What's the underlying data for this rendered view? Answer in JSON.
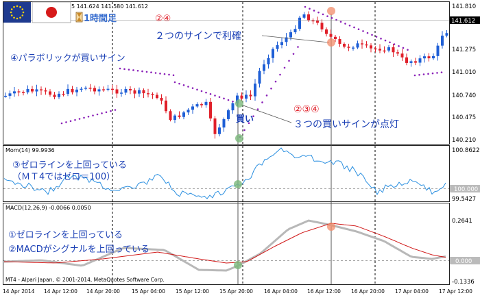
{
  "header": {
    "ohlc_text": "5 141.624 141.580 141.612",
    "timeframe_label": "1時間足"
  },
  "colors": {
    "up": "#1f5fd6",
    "down": "#e0202a",
    "sar": "#8a20b8",
    "annotation_blue": "#1a3fb5",
    "annotation_red": "#e0202a",
    "mom_line": "#2a8fe0",
    "macd_main": "#b8b8b8",
    "macd_signal": "#d01818",
    "highlight": "#f28b68"
  },
  "price_panel": {
    "y_axis_labels": [
      "141.810",
      "141.612",
      "141.275",
      "141.010",
      "140.740",
      "140.475",
      "140.210"
    ],
    "current_price": "141.612",
    "annotations": {
      "top_numbers": "②④",
      "parabolic_sign": "④パラボリックが買いサイン",
      "profit_taking": "２つのサインで利確",
      "buy_numbers": "②③④",
      "buy_word": "買い",
      "three_signs": "３つの買いサインが点灯"
    }
  },
  "mom_panel": {
    "label": "Mom(14) 99.9936",
    "y_axis_labels": [
      "100.8622",
      "100.000",
      "99.5427"
    ],
    "annotation_line1": "③ゼロラインを上回っている",
    "annotation_line2": "（ＭＴ4ではゼロ＝100）"
  },
  "macd_panel": {
    "label": "MACD(12,26,9) -0.0066 0.0050",
    "y_axis_labels": [
      "0.2641",
      "0.000",
      "-0.1336"
    ],
    "annotation_line1": "①ゼロラインを上回っている",
    "annotation_line2": "②MACDがシグナルを上回っている",
    "copyright": "MT4 - Alpari Japan, © 2001-2014, MetaQuotes Software Corp."
  },
  "x_axis_labels": [
    "14 Apr 2014",
    "14 Apr 12:00",
    "14 Apr 20:00",
    "15 Apr 04:00",
    "15 Apr 12:00",
    "15 Apr 20:00",
    "16 Apr 04:00",
    "16 Apr 12:00",
    "16 Apr 20:00",
    "17 Apr 04:00",
    "17 Apr 12:00"
  ],
  "icons": {
    "eu_flag": "eu-flag-icon",
    "jp_flag": "japan-flag-icon",
    "hourglass": "hourglass-icon"
  }
}
